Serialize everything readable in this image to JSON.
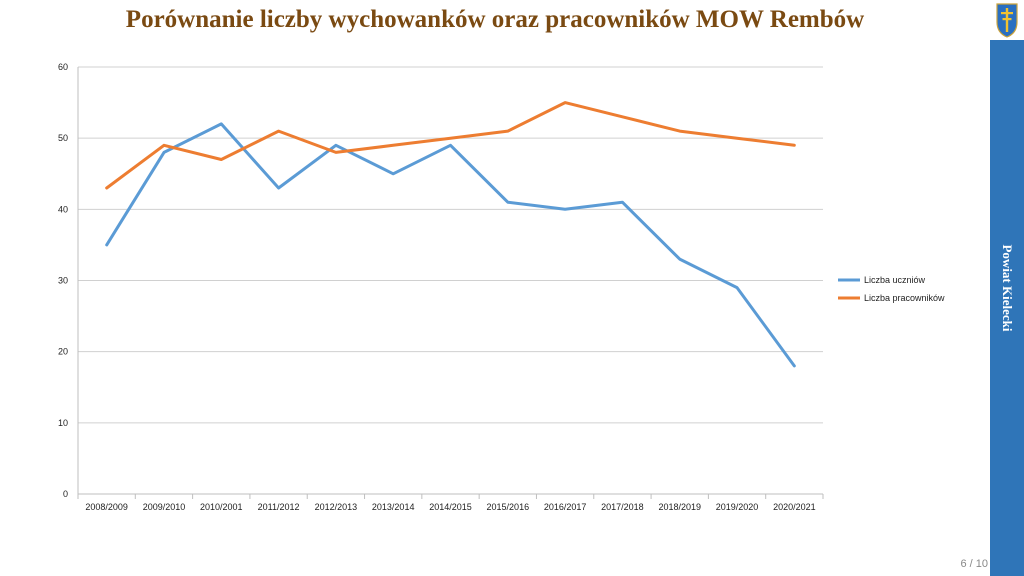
{
  "slide": {
    "title": "Porównanie  liczby wychowanków oraz pracowników MOW Rembów",
    "sidebar_text": "Powiat Kielecki",
    "page_number": "6 / 10"
  },
  "colors": {
    "title": "#7a4a12",
    "sidebar": "#2f75b8",
    "series_1": "#5b9bd5",
    "series_2": "#ed7d31",
    "grid": "#d0d0d0"
  },
  "icons": {
    "emblem": "coat-of-arms-icon"
  },
  "chart_data": {
    "type": "line",
    "categories": [
      "2008/2009",
      "2009/2010",
      "2010/2001",
      "2011/2012",
      "2012/2013",
      "2013/2014",
      "2014/2015",
      "2015/2016",
      "2016/2017",
      "2017/2018",
      "2018/2019",
      "2019/2020",
      "2020/2021"
    ],
    "series": [
      {
        "name": "Liczba uczniów",
        "color": "#5b9bd5",
        "values": [
          35,
          48,
          52,
          43,
          49,
          45,
          49,
          41,
          40,
          41,
          33,
          29,
          18
        ]
      },
      {
        "name": "Liczba pracowników",
        "color": "#ed7d31",
        "values": [
          43,
          49,
          47,
          51,
          48,
          49,
          50,
          51,
          55,
          53,
          51,
          50,
          49
        ]
      }
    ],
    "ylim": [
      0,
      60
    ],
    "yticks": [
      "0",
      "10",
      "20",
      "30",
      "40",
      "50",
      "60"
    ],
    "grid": true,
    "legend": "right"
  }
}
